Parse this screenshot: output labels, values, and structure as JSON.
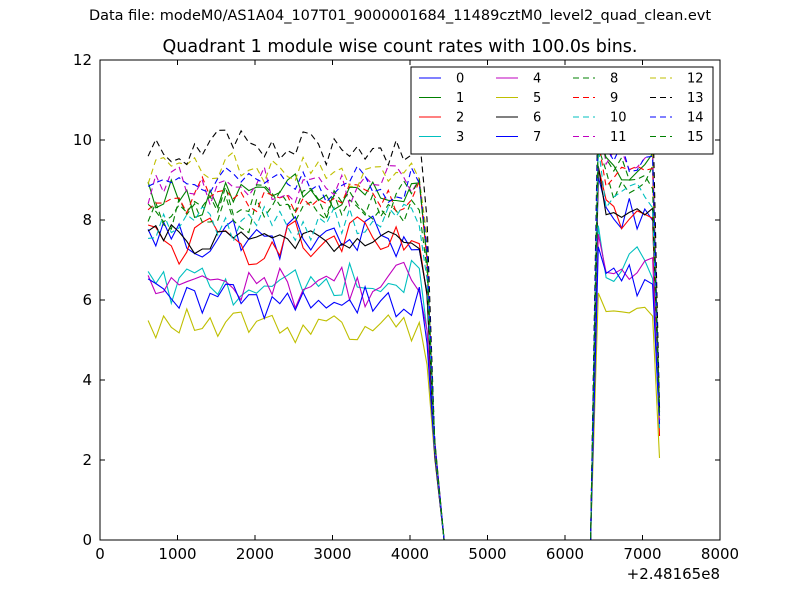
{
  "figure": {
    "suptitle": "Data file: modeM0/AS1A04_107T01_9000001684_11489cztM0_level2_quad_clean.evt"
  },
  "chart_data": {
    "type": "line",
    "title": "Quadrant 1 module wise count rates with 100.0s bins.",
    "xlabel": "",
    "ylabel": "",
    "xlim": [
      0,
      8000
    ],
    "ylim": [
      0,
      12
    ],
    "xticks": [
      0,
      1000,
      2000,
      3000,
      4000,
      5000,
      6000,
      7000,
      8000
    ],
    "xtick_labels": [
      "0",
      "1000",
      "2000",
      "3000",
      "4000",
      "5000",
      "6000",
      "7000",
      "8000"
    ],
    "yticks": [
      0,
      2,
      4,
      6,
      8,
      10,
      12
    ],
    "ytick_labels": [
      "0",
      "2",
      "4",
      "6",
      "8",
      "10",
      "12"
    ],
    "x_offset_label": "+2.48165e8",
    "grid": false,
    "legend": {
      "position": "top-right",
      "columns": 4
    },
    "x": [
      620,
      720,
      820,
      920,
      1020,
      1120,
      1220,
      1320,
      1420,
      1520,
      1620,
      1720,
      1820,
      1920,
      2020,
      2120,
      2220,
      2320,
      2420,
      2520,
      2620,
      2720,
      2820,
      2920,
      3020,
      3120,
      3220,
      3320,
      3420,
      3520,
      3620,
      3720,
      3820,
      3920,
      4020,
      4120,
      4220,
      4320,
      4440,
      6330,
      6430,
      6530,
      6630,
      6730,
      6830,
      6930,
      7030,
      7130,
      7220
    ],
    "series": [
      {
        "name": "0",
        "color": "#0000ff",
        "dash": false,
        "base": 7.55,
        "amp": 0.5,
        "tail": 3.0
      },
      {
        "name": "1",
        "color": "#008000",
        "dash": false,
        "base": 8.6,
        "amp": 0.45,
        "tail": 3.2
      },
      {
        "name": "2",
        "color": "#ff0000",
        "dash": false,
        "base": 7.45,
        "amp": 0.5,
        "tail": 2.6
      },
      {
        "name": "3",
        "color": "#00bfbf",
        "dash": false,
        "base": 6.4,
        "amp": 0.45,
        "tail": 2.8
      },
      {
        "name": "4",
        "color": "#bf00bf",
        "dash": false,
        "base": 6.4,
        "amp": 0.45,
        "tail": 3.0
      },
      {
        "name": "5",
        "color": "#bfbf00",
        "dash": false,
        "base": 5.35,
        "amp": 0.35,
        "tail": 2.05
      },
      {
        "name": "6",
        "color": "#000000",
        "dash": false,
        "base": 7.5,
        "amp": 0.3,
        "tail": 3.1
      },
      {
        "name": "7",
        "color": "#0000ff",
        "dash": false,
        "base": 6.0,
        "amp": 0.45,
        "tail": 2.9
      },
      {
        "name": "8",
        "color": "#008000",
        "dash": true,
        "base": 8.25,
        "amp": 0.45,
        "tail": 3.2
      },
      {
        "name": "9",
        "color": "#ff0000",
        "dash": true,
        "base": 8.55,
        "amp": 0.4,
        "tail": 3.0
      },
      {
        "name": "10",
        "color": "#00bfbf",
        "dash": true,
        "base": 7.95,
        "amp": 0.4,
        "tail": 3.1
      },
      {
        "name": "11",
        "color": "#bf00bf",
        "dash": true,
        "base": 8.85,
        "amp": 0.4,
        "tail": 3.0
      },
      {
        "name": "12",
        "color": "#bfbf00",
        "dash": true,
        "base": 9.25,
        "amp": 0.4,
        "tail": 3.0
      },
      {
        "name": "13",
        "color": "#000000",
        "dash": true,
        "base": 9.8,
        "amp": 0.45,
        "tail": 3.3
      },
      {
        "name": "14",
        "color": "#0000ff",
        "dash": true,
        "base": 8.9,
        "amp": 0.4,
        "tail": 3.0
      },
      {
        "name": "15",
        "color": "#008000",
        "dash": true,
        "base": 8.5,
        "amp": 0.45,
        "tail": 3.1
      }
    ]
  }
}
